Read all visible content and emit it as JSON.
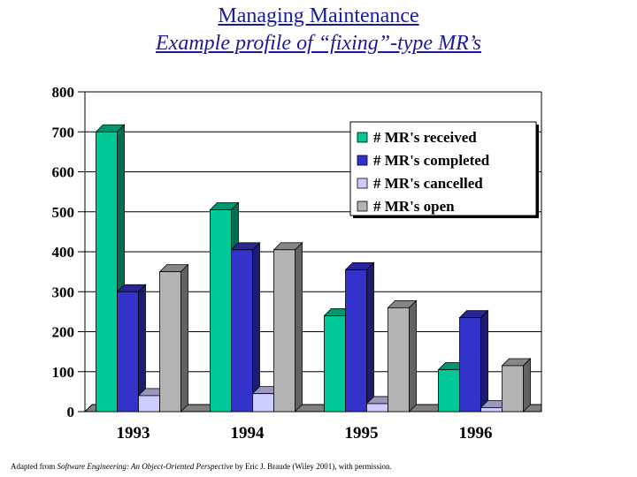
{
  "slide": {
    "title": "Managing Maintenance",
    "subtitle": "Example profile of “fixing”-type MR’s",
    "credit_prefix": "Adapted from ",
    "credit_book": "Software Engineering: An Object-Oriented Perspective",
    "credit_suffix": " by Eric J. Braude (Wiley 2001), with permission."
  },
  "chart_data": {
    "type": "bar",
    "style": "3d-clustered-column",
    "title": "",
    "xlabel": "",
    "ylabel": "",
    "categories": [
      "1993",
      "1994",
      "1995",
      "1996"
    ],
    "ylim": [
      0,
      800
    ],
    "yticks": [
      "0",
      "100",
      "200",
      "300",
      "400",
      "500",
      "600",
      "700",
      "800"
    ],
    "grid": true,
    "legend_position": "top-right",
    "series": [
      {
        "name": "# MR's received",
        "color": "#00c896",
        "values": [
          700,
          505,
          240,
          105
        ]
      },
      {
        "name": "# MR's completed",
        "color": "#3333cc",
        "values": [
          300,
          405,
          355,
          235
        ]
      },
      {
        "name": "# MR's cancelled",
        "color": "#ccccff",
        "values": [
          40,
          45,
          20,
          10
        ]
      },
      {
        "name": "# MR's open",
        "color": "#b3b3b3",
        "values": [
          350,
          405,
          260,
          115
        ]
      }
    ]
  }
}
